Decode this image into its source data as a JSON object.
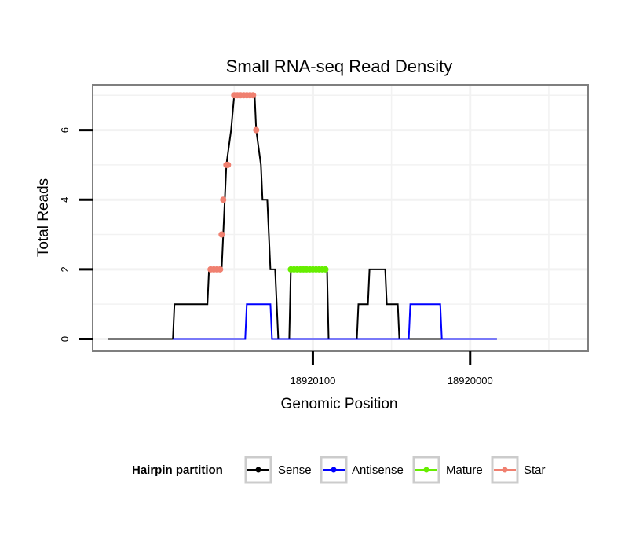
{
  "chart_data": {
    "type": "line",
    "title": "Small RNA-seq Read Density",
    "xlabel": "Genomic Position",
    "ylabel": "Total Reads",
    "xlim": [
      18920240,
      18919925
    ],
    "x_reversed": true,
    "ylim": [
      -0.35,
      7.3
    ],
    "grid": true,
    "x_ticks": [
      18920100,
      18920000
    ],
    "x_tick_labels": [
      "18920100",
      "18920000"
    ],
    "y_ticks": [
      0,
      2,
      4,
      6
    ],
    "y_tick_labels": [
      "0",
      "2",
      "4",
      "6"
    ],
    "legend": {
      "title": "Hairpin partition",
      "position": "bottom",
      "entries": [
        {
          "key": "sense",
          "label": "Sense",
          "color": "#000000"
        },
        {
          "key": "antisense",
          "label": "Antisense",
          "color": "#0000ff"
        },
        {
          "key": "mature",
          "label": "Mature",
          "color": "#66ee00"
        },
        {
          "key": "star",
          "label": "Star",
          "color": "#f08070"
        }
      ]
    },
    "series": [
      {
        "name": "Sense",
        "color": "#000000",
        "points": [
          [
            18920230,
            0
          ],
          [
            18920189,
            0
          ],
          [
            18920188,
            1
          ],
          [
            18920167,
            1
          ],
          [
            18920166,
            2
          ],
          [
            18920158,
            2
          ],
          [
            18920157,
            3
          ],
          [
            18920156,
            4
          ],
          [
            18920155,
            5
          ],
          [
            18920152,
            6
          ],
          [
            18920150,
            7
          ],
          [
            18920137,
            7
          ],
          [
            18920136,
            6
          ],
          [
            18920133,
            5
          ],
          [
            18920132,
            4
          ],
          [
            18920129,
            4
          ],
          [
            18920127,
            2
          ],
          [
            18920124,
            2
          ],
          [
            18920122,
            0
          ],
          [
            18920115,
            0
          ],
          [
            18920114,
            2
          ],
          [
            18920091,
            2
          ],
          [
            18920090,
            0
          ],
          [
            18920072,
            0
          ],
          [
            18920071,
            1
          ],
          [
            18920065,
            1
          ],
          [
            18920064,
            2
          ],
          [
            18920054,
            2
          ],
          [
            18920053,
            1
          ],
          [
            18920046,
            1
          ],
          [
            18920045,
            0
          ],
          [
            18919983,
            0
          ]
        ]
      },
      {
        "name": "Antisense",
        "color": "#0000ff",
        "points": [
          [
            18920189,
            0
          ],
          [
            18920143,
            0
          ],
          [
            18920142,
            1
          ],
          [
            18920127,
            1
          ],
          [
            18920126,
            0
          ],
          [
            18920120,
            0
          ],
          [
            18920071,
            0
          ],
          [
            18920070,
            0
          ],
          [
            18920045,
            0
          ],
          [
            18920039,
            0
          ],
          [
            18920038,
            1
          ],
          [
            18920019,
            1
          ],
          [
            18920018,
            0
          ],
          [
            18919983,
            0
          ]
        ]
      },
      {
        "name": "Mature",
        "color": "#66ee00",
        "markers": [
          [
            18920114,
            2
          ],
          [
            18920112,
            2
          ],
          [
            18920110,
            2
          ],
          [
            18920108,
            2
          ],
          [
            18920106,
            2
          ],
          [
            18920104,
            2
          ],
          [
            18920102,
            2
          ],
          [
            18920100,
            2
          ],
          [
            18920098,
            2
          ],
          [
            18920096,
            2
          ],
          [
            18920094,
            2
          ],
          [
            18920092,
            2
          ]
        ]
      },
      {
        "name": "Star",
        "color": "#f08070",
        "markers": [
          [
            18920165,
            2
          ],
          [
            18920163,
            2
          ],
          [
            18920161,
            2
          ],
          [
            18920159,
            2
          ],
          [
            18920158,
            3
          ],
          [
            18920157,
            4
          ],
          [
            18920155,
            5
          ],
          [
            18920154,
            5
          ],
          [
            18920150,
            7
          ],
          [
            18920148,
            7
          ],
          [
            18920146,
            7
          ],
          [
            18920144,
            7
          ],
          [
            18920142,
            7
          ],
          [
            18920140,
            7
          ],
          [
            18920138,
            7
          ],
          [
            18920136,
            6
          ]
        ]
      }
    ]
  }
}
